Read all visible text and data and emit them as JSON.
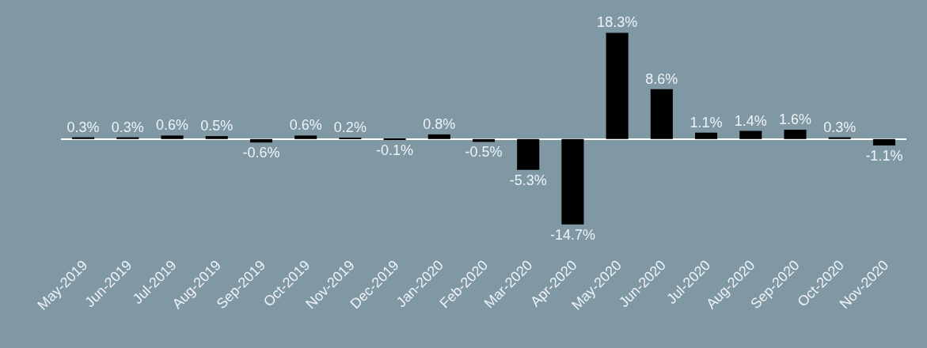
{
  "chart_data": {
    "type": "bar",
    "categories": [
      "May-2019",
      "Jun-2019",
      "Jul-2019",
      "Aug-2019",
      "Sep-2019",
      "Oct-2019",
      "Nov-2019",
      "Dec-2019",
      "Jan-2020",
      "Feb-2020",
      "Mar-2020",
      "Apr-2020",
      "May-2020",
      "Jun-2020",
      "Jul-2020",
      "Aug-2020",
      "Sep-2020",
      "Oct-2020",
      "Nov-2020"
    ],
    "values": [
      0.3,
      0.3,
      0.6,
      0.5,
      -0.6,
      0.6,
      0.2,
      -0.1,
      0.8,
      -0.5,
      -5.3,
      -14.7,
      18.3,
      8.6,
      1.1,
      1.4,
      1.6,
      0.3,
      -1.1
    ],
    "value_labels": [
      "0.3%",
      "0.3%",
      "0.6%",
      "0.5%",
      "-0.6%",
      "0.6%",
      "0.2%",
      "-0.1%",
      "0.8%",
      "-0.5%",
      "-5.3%",
      "-14.7%",
      "18.3%",
      "8.6%",
      "1.1%",
      "1.4%",
      "1.6%",
      "0.3%",
      "-1.1%"
    ],
    "color": "#000000",
    "tick_labels": "x",
    "grid": false,
    "legend": false
  }
}
